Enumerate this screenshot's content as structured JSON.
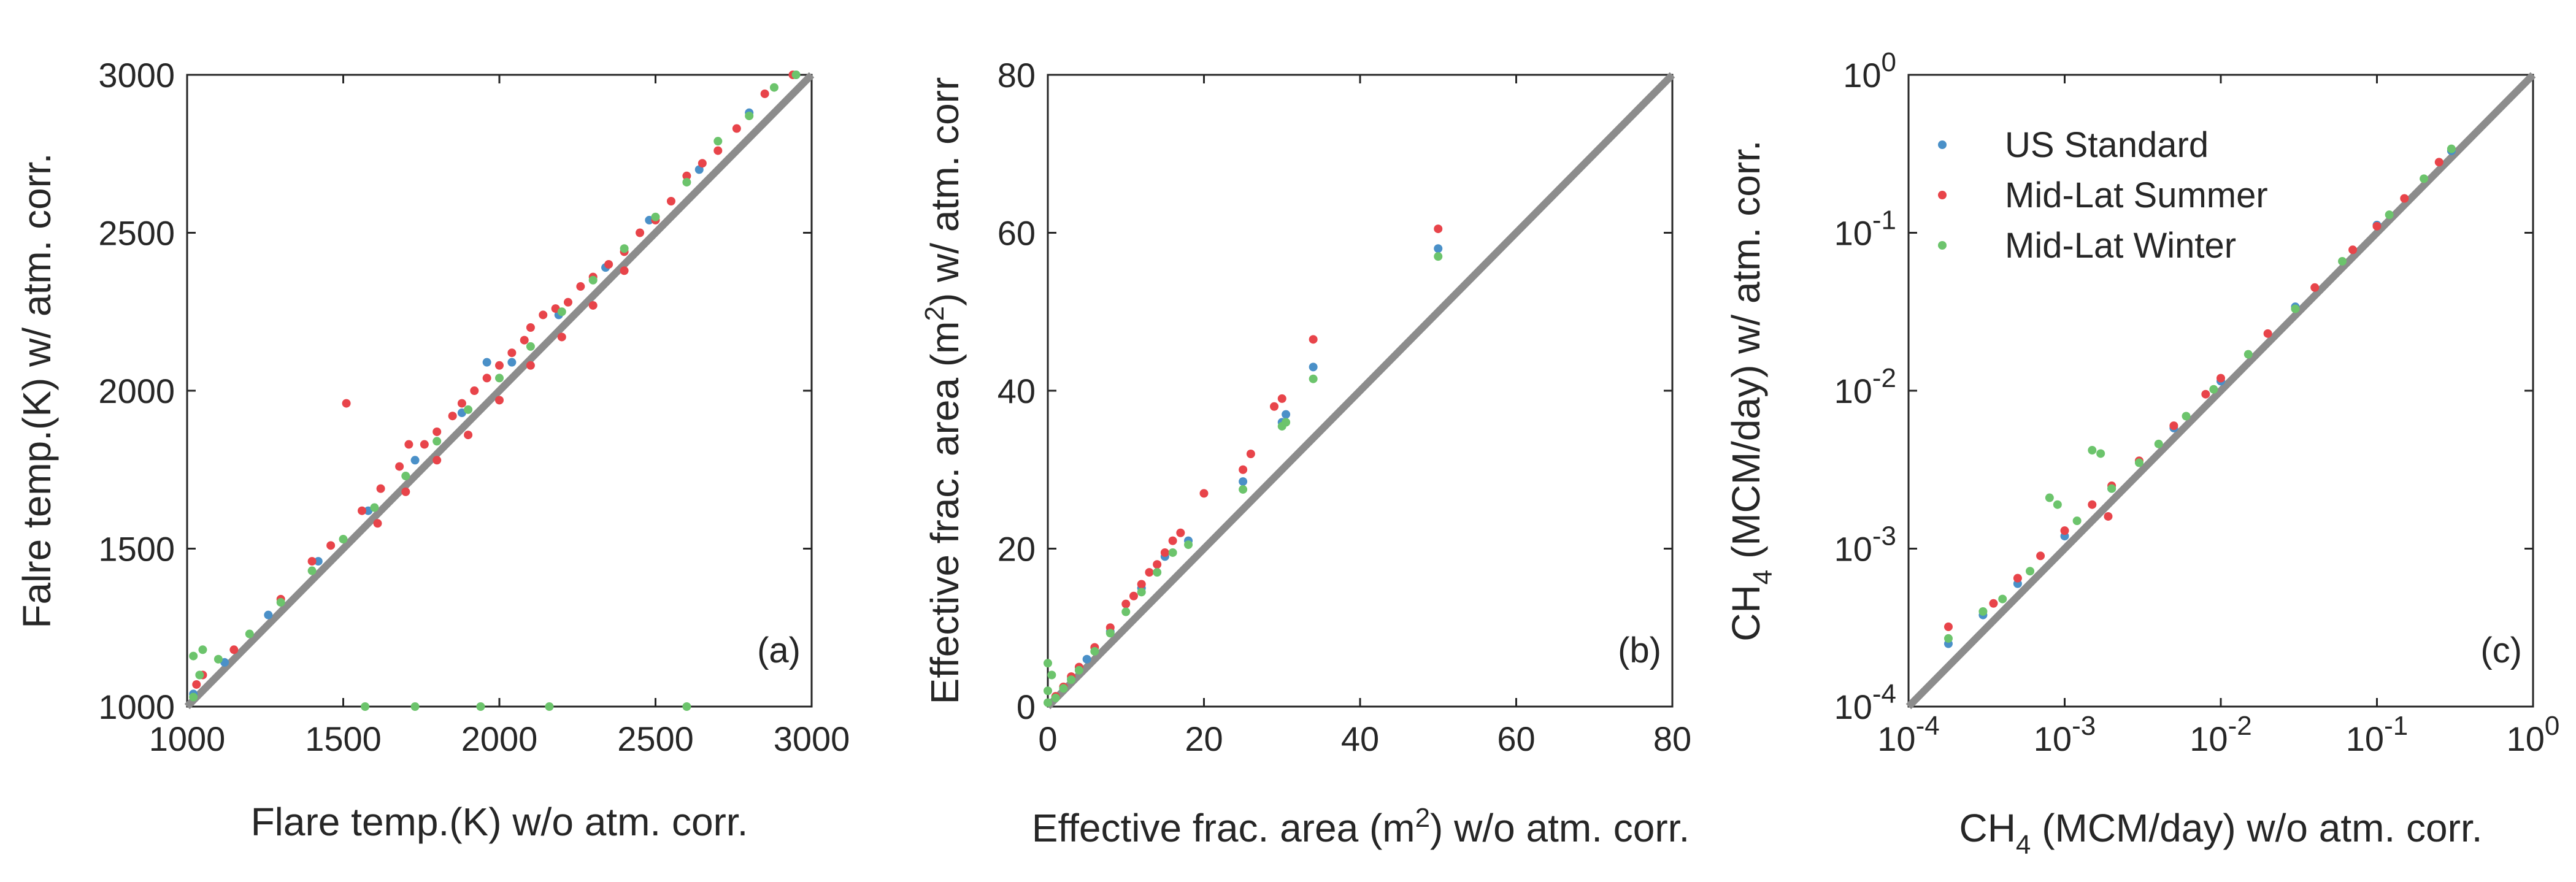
{
  "chart_data": [
    {
      "type": "scatter",
      "panel_label": "(a)",
      "xlabel": "Flare temp.(K) w/o atm. corr.",
      "ylabel": "Falre temp.(K) w/ atm. corr.",
      "xlim": [
        1000,
        3000
      ],
      "ylim": [
        1000,
        3000
      ],
      "xticks": [
        1000,
        1500,
        2000,
        2500,
        3000
      ],
      "yticks": [
        1000,
        1500,
        2000,
        2500,
        3000
      ],
      "xtick_labels": [
        "1000",
        "1500",
        "2000",
        "2500",
        "3000"
      ],
      "ytick_labels": [
        "1000",
        "1500",
        "2000",
        "2500",
        "3000"
      ],
      "reference_line": "1:1",
      "series": [
        {
          "name": "US Standard",
          "color": "#4a90c8",
          "points": [
            [
              1020,
              1040
            ],
            [
              1120,
              1140
            ],
            [
              1260,
              1290
            ],
            [
              1420,
              1460
            ],
            [
              1580,
              1620
            ],
            [
              1730,
              1780
            ],
            [
              1880,
              1930
            ],
            [
              1960,
              2090
            ],
            [
              2040,
              2090
            ],
            [
              2190,
              2240
            ],
            [
              2340,
              2390
            ],
            [
              2480,
              2540
            ],
            [
              2640,
              2700
            ],
            [
              2800,
              2880
            ],
            [
              2950,
              3000
            ]
          ]
        },
        {
          "name": "Mid-Lat Summer",
          "color": "#e8444a",
          "points": [
            [
              1030,
              1070
            ],
            [
              1050,
              1100
            ],
            [
              1150,
              1180
            ],
            [
              1300,
              1340
            ],
            [
              1400,
              1460
            ],
            [
              1460,
              1510
            ],
            [
              1510,
              1960
            ],
            [
              1560,
              1620
            ],
            [
              1620,
              1690
            ],
            [
              1680,
              1760
            ],
            [
              1710,
              1830
            ],
            [
              1760,
              1830
            ],
            [
              1800,
              1870
            ],
            [
              1850,
              1920
            ],
            [
              1880,
              1960
            ],
            [
              1920,
              2000
            ],
            [
              1960,
              2040
            ],
            [
              2000,
              2080
            ],
            [
              2040,
              2120
            ],
            [
              2080,
              2160
            ],
            [
              2100,
              2200
            ],
            [
              2140,
              2240
            ],
            [
              2180,
              2260
            ],
            [
              2220,
              2280
            ],
            [
              2260,
              2330
            ],
            [
              2300,
              2360
            ],
            [
              2350,
              2400
            ],
            [
              2400,
              2440
            ],
            [
              2450,
              2500
            ],
            [
              2500,
              2540
            ],
            [
              2550,
              2600
            ],
            [
              2600,
              2680
            ],
            [
              2650,
              2720
            ],
            [
              2700,
              2760
            ],
            [
              2760,
              2830
            ],
            [
              2850,
              2940
            ],
            [
              2940,
              3000
            ],
            [
              1610,
              1580
            ],
            [
              1700,
              1680
            ],
            [
              1800,
              1780
            ],
            [
              1900,
              1860
            ],
            [
              2000,
              1970
            ],
            [
              2100,
              2080
            ],
            [
              2200,
              2170
            ],
            [
              2300,
              2270
            ],
            [
              2400,
              2380
            ]
          ]
        },
        {
          "name": "Mid-Lat Winter",
          "color": "#6cc46c",
          "points": [
            [
              1020,
              1030
            ],
            [
              1020,
              1160
            ],
            [
              1040,
              1100
            ],
            [
              1050,
              1180
            ],
            [
              1100,
              1150
            ],
            [
              1200,
              1230
            ],
            [
              1300,
              1330
            ],
            [
              1400,
              1430
            ],
            [
              1500,
              1530
            ],
            [
              1600,
              1630
            ],
            [
              1700,
              1730
            ],
            [
              1800,
              1840
            ],
            [
              1900,
              1940
            ],
            [
              2000,
              2040
            ],
            [
              2100,
              2140
            ],
            [
              2200,
              2250
            ],
            [
              2300,
              2350
            ],
            [
              2400,
              2450
            ],
            [
              2500,
              2550
            ],
            [
              2600,
              2660
            ],
            [
              2700,
              2790
            ],
            [
              2800,
              2870
            ],
            [
              2880,
              2960
            ],
            [
              2950,
              3000
            ],
            [
              1570,
              1000
            ],
            [
              1730,
              1000
            ],
            [
              1940,
              1000
            ],
            [
              2160,
              1000
            ],
            [
              2600,
              1000
            ]
          ]
        }
      ]
    },
    {
      "type": "scatter",
      "panel_label": "(b)",
      "xlabel_parts": [
        "Effective frac. area (m",
        "2",
        ") w/o atm. corr."
      ],
      "ylabel_parts": [
        "Effective frac. area (m",
        "2",
        ") w/ atm. corr"
      ],
      "xlim": [
        0,
        80
      ],
      "ylim": [
        0,
        80
      ],
      "xticks": [
        0,
        20,
        40,
        60,
        80
      ],
      "yticks": [
        0,
        20,
        40,
        60,
        80
      ],
      "xtick_labels": [
        "0",
        "20",
        "40",
        "60",
        "80"
      ],
      "ytick_labels": [
        "0",
        "20",
        "40",
        "60",
        "80"
      ],
      "reference_line": "1:1",
      "series": [
        {
          "name": "US Standard",
          "color": "#4a90c8",
          "points": [
            [
              1,
              1.2
            ],
            [
              3,
              3.5
            ],
            [
              5,
              6
            ],
            [
              8,
              9.5
            ],
            [
              12,
              15
            ],
            [
              15,
              19
            ],
            [
              18,
              21
            ],
            [
              25,
              28.5
            ],
            [
              30,
              36
            ],
            [
              30.5,
              37
            ],
            [
              34,
              43
            ],
            [
              50,
              58
            ]
          ]
        },
        {
          "name": "Mid-Lat Summer",
          "color": "#e8444a",
          "points": [
            [
              1,
              1.3
            ],
            [
              2,
              2.5
            ],
            [
              3,
              3.8
            ],
            [
              4,
              5
            ],
            [
              6,
              7.5
            ],
            [
              8,
              10
            ],
            [
              10,
              13
            ],
            [
              11,
              14
            ],
            [
              12,
              15.5
            ],
            [
              13,
              17
            ],
            [
              14,
              18
            ],
            [
              15,
              19.5
            ],
            [
              16,
              21
            ],
            [
              17,
              22
            ],
            [
              20,
              27
            ],
            [
              25,
              30
            ],
            [
              26,
              32
            ],
            [
              29,
              38
            ],
            [
              30,
              39
            ],
            [
              34,
              46.5
            ],
            [
              50,
              60.5
            ]
          ]
        },
        {
          "name": "Mid-Lat Winter",
          "color": "#6cc46c",
          "points": [
            [
              0,
              0.5
            ],
            [
              0,
              2
            ],
            [
              0.5,
              4
            ],
            [
              0,
              5.5
            ],
            [
              1,
              1.1
            ],
            [
              2,
              2.3
            ],
            [
              3,
              3.4
            ],
            [
              4,
              4.6
            ],
            [
              6,
              7
            ],
            [
              8,
              9.3
            ],
            [
              10,
              12
            ],
            [
              12,
              14.5
            ],
            [
              14,
              17
            ],
            [
              16,
              19.5
            ],
            [
              18,
              20.5
            ],
            [
              25,
              27.5
            ],
            [
              30,
              35.5
            ],
            [
              30.5,
              36
            ],
            [
              34,
              41.5
            ],
            [
              50,
              57
            ]
          ]
        }
      ]
    },
    {
      "type": "scatter",
      "panel_label": "(c)",
      "xscale": "log",
      "yscale": "log",
      "xlabel_parts": [
        "CH",
        "4",
        " (MCM/day) w/o atm. corr."
      ],
      "ylabel_parts": [
        "CH",
        "4",
        " (MCM/day) w/ atm. corr."
      ],
      "xlim": [
        0.0001,
        1
      ],
      "ylim": [
        0.0001,
        1
      ],
      "xticks": [
        0.0001,
        0.001,
        0.01,
        0.1,
        1
      ],
      "yticks": [
        0.0001,
        0.001,
        0.01,
        0.1,
        1
      ],
      "tick_base": "10",
      "tick_exponents": [
        "-4",
        "-3",
        "-2",
        "-1",
        "0"
      ],
      "reference_line": "1:1",
      "legend": {
        "location": "top-left",
        "entries": [
          "US Standard",
          "Mid-Lat Summer",
          "Mid-Lat Winter"
        ]
      },
      "series": [
        {
          "name": "US Standard",
          "color": "#4a90c8",
          "points": [
            [
              0.00018,
              0.00025
            ],
            [
              0.0003,
              0.00038
            ],
            [
              0.0005,
              0.0006
            ],
            [
              0.001,
              0.0012
            ],
            [
              0.002,
              0.0024
            ],
            [
              0.005,
              0.0058
            ],
            [
              0.01,
              0.0115
            ],
            [
              0.03,
              0.034
            ],
            [
              0.1,
              0.112
            ],
            [
              0.3,
              0.33
            ]
          ]
        },
        {
          "name": "Mid-Lat Summer",
          "color": "#e8444a",
          "points": [
            [
              0.00018,
              0.00032
            ],
            [
              0.00035,
              0.00045
            ],
            [
              0.0005,
              0.00065
            ],
            [
              0.0007,
              0.0009
            ],
            [
              0.001,
              0.0013
            ],
            [
              0.0015,
              0.0019
            ],
            [
              0.0019,
              0.0016
            ],
            [
              0.002,
              0.0025
            ],
            [
              0.003,
              0.0036
            ],
            [
              0.005,
              0.006
            ],
            [
              0.008,
              0.0095
            ],
            [
              0.01,
              0.012
            ],
            [
              0.02,
              0.023
            ],
            [
              0.04,
              0.045
            ],
            [
              0.07,
              0.078
            ],
            [
              0.1,
              0.11
            ],
            [
              0.15,
              0.165
            ],
            [
              0.25,
              0.28
            ]
          ]
        },
        {
          "name": "Mid-Lat Winter",
          "color": "#6cc46c",
          "points": [
            [
              0.00018,
              0.00027
            ],
            [
              0.0003,
              0.0004
            ],
            [
              0.0004,
              0.00048
            ],
            [
              0.0006,
              0.00072
            ],
            [
              0.0008,
              0.0021
            ],
            [
              0.0009,
              0.0019
            ],
            [
              0.0012,
              0.0015
            ],
            [
              0.0015,
              0.0042
            ],
            [
              0.0017,
              0.004
            ],
            [
              0.002,
              0.0024
            ],
            [
              0.003,
              0.0035
            ],
            [
              0.004,
              0.0046
            ],
            [
              0.006,
              0.0069
            ],
            [
              0.009,
              0.0102
            ],
            [
              0.015,
              0.017
            ],
            [
              0.03,
              0.033
            ],
            [
              0.06,
              0.066
            ],
            [
              0.12,
              0.13
            ],
            [
              0.2,
              0.22
            ],
            [
              0.3,
              0.34
            ]
          ]
        }
      ]
    }
  ]
}
